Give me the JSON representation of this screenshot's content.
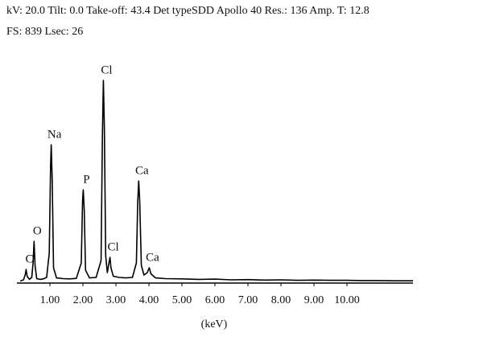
{
  "chart_data": {
    "type": "line",
    "header": [
      "kV: 20.0  Tilt: 0.0  Take-off: 43.4  Det typeSDD Apollo 40  Res.: 136  Amp. T: 12.8",
      "FS: 839   Lsec: 26"
    ],
    "x_label": "(keV)",
    "color": "#000000",
    "xlim": [
      0,
      12
    ],
    "ylim": [
      0,
      1000
    ],
    "xticks": [
      {
        "value": 1,
        "label": "1.00"
      },
      {
        "value": 2,
        "label": "2.00"
      },
      {
        "value": 3,
        "label": "3.00"
      },
      {
        "value": 4,
        "label": "4.00"
      },
      {
        "value": 5,
        "label": "5.00"
      },
      {
        "value": 6,
        "label": "6.00"
      },
      {
        "value": 7,
        "label": "7.00"
      },
      {
        "value": 8,
        "label": "8.00"
      },
      {
        "value": 9,
        "label": "9.00"
      },
      {
        "value": 10,
        "label": "10.00"
      }
    ],
    "x": [
      0.1,
      0.2,
      0.25,
      0.28,
      0.31,
      0.38,
      0.45,
      0.49,
      0.52,
      0.55,
      0.6,
      0.7,
      0.8,
      0.9,
      0.98,
      1.02,
      1.04,
      1.07,
      1.11,
      1.2,
      1.4,
      1.6,
      1.8,
      1.95,
      1.99,
      2.01,
      2.04,
      2.08,
      2.2,
      2.4,
      2.55,
      2.59,
      2.62,
      2.65,
      2.69,
      2.74,
      2.79,
      2.82,
      2.85,
      2.92,
      3.1,
      3.3,
      3.5,
      3.62,
      3.66,
      3.69,
      3.72,
      3.77,
      3.85,
      3.95,
      4.01,
      4.06,
      4.2,
      4.5,
      5,
      5.5,
      6,
      6.5,
      7,
      7.5,
      8,
      8.5,
      9,
      9.5,
      10,
      10.5,
      11,
      11.5,
      12
    ],
    "values": [
      5,
      10,
      30,
      53,
      25,
      12,
      20,
      80,
      170,
      70,
      15,
      12,
      14,
      20,
      120,
      480,
      570,
      420,
      60,
      18,
      15,
      14,
      16,
      80,
      340,
      383,
      300,
      50,
      18,
      20,
      90,
      600,
      837,
      640,
      110,
      40,
      80,
      103,
      60,
      25,
      20,
      18,
      20,
      80,
      330,
      420,
      340,
      70,
      30,
      40,
      60,
      35,
      18,
      15,
      14,
      12,
      13,
      10,
      11,
      9,
      10,
      8,
      9,
      8,
      8,
      7,
      7,
      6,
      6
    ],
    "annotations": [
      {
        "text": "C",
        "x": 0.28,
        "y": 53
      },
      {
        "text": "O",
        "x": 0.52,
        "y": 170
      },
      {
        "text": "Na",
        "x": 1.04,
        "y": 570
      },
      {
        "text": "P",
        "x": 2.01,
        "y": 383
      },
      {
        "text": "Cl",
        "x": 2.62,
        "y": 837
      },
      {
        "text": "Cl",
        "x": 2.82,
        "y": 103
      },
      {
        "text": "Ca",
        "x": 3.69,
        "y": 420
      },
      {
        "text": "Ca",
        "x": 4.01,
        "y": 60
      }
    ]
  }
}
